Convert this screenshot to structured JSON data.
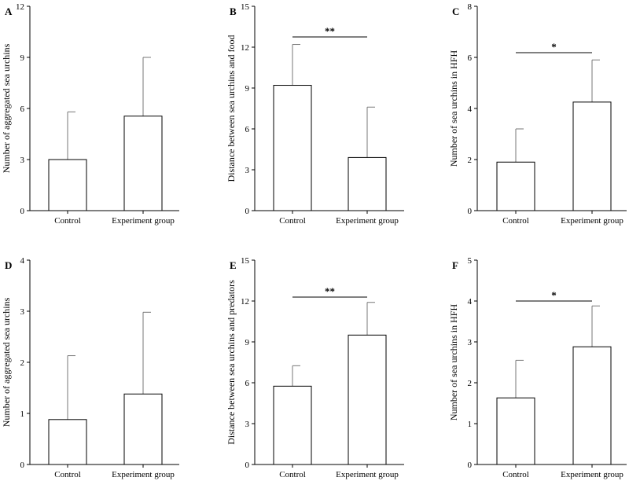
{
  "chart_data": [
    {
      "panel": "A",
      "type": "bar",
      "categories": [
        "Control",
        "Experiment group"
      ],
      "values": [
        3.0,
        5.55
      ],
      "errors": [
        2.8,
        3.45
      ],
      "ylabel": "Number of aggregated sea urchins",
      "ylim": [
        0,
        12
      ],
      "yticks": [
        0,
        3,
        6,
        9,
        12
      ],
      "significance": ""
    },
    {
      "panel": "B",
      "type": "bar",
      "categories": [
        "Control",
        "Experiment group"
      ],
      "values": [
        9.2,
        3.9
      ],
      "errors": [
        3.0,
        3.7
      ],
      "ylabel": "Distance between sea urchins and food",
      "ylim": [
        0,
        15
      ],
      "yticks": [
        0,
        3,
        6,
        9,
        12,
        15
      ],
      "significance": "**"
    },
    {
      "panel": "C",
      "type": "bar",
      "categories": [
        "Control",
        "Experiment group"
      ],
      "values": [
        1.9,
        4.25
      ],
      "errors": [
        1.3,
        1.65
      ],
      "ylabel": "Number of sea urchins in HFH",
      "ylim": [
        0,
        8
      ],
      "yticks": [
        0,
        2,
        4,
        6,
        8
      ],
      "significance": "*"
    },
    {
      "panel": "D",
      "type": "bar",
      "categories": [
        "Control",
        "Experiment group"
      ],
      "values": [
        0.88,
        1.38
      ],
      "errors": [
        1.25,
        1.6
      ],
      "ylabel": "Number of aggregated sea urchins",
      "ylim": [
        0,
        4
      ],
      "yticks": [
        0,
        1,
        2,
        3,
        4
      ],
      "significance": ""
    },
    {
      "panel": "E",
      "type": "bar",
      "categories": [
        "Control",
        "Experiment group"
      ],
      "values": [
        5.75,
        9.5
      ],
      "errors": [
        1.5,
        2.4
      ],
      "ylabel": "Distance between sea urchins and predators",
      "ylim": [
        0,
        15
      ],
      "yticks": [
        0,
        3,
        6,
        9,
        12,
        15
      ],
      "significance": "**"
    },
    {
      "panel": "F",
      "type": "bar",
      "categories": [
        "Control",
        "Experiment group"
      ],
      "values": [
        1.63,
        2.88
      ],
      "errors": [
        0.92,
        1.0
      ],
      "ylabel": "Number of sea urchins in HFH",
      "ylim": [
        0,
        5
      ],
      "yticks": [
        0,
        1,
        2,
        3,
        4,
        5
      ],
      "significance": "*"
    }
  ]
}
